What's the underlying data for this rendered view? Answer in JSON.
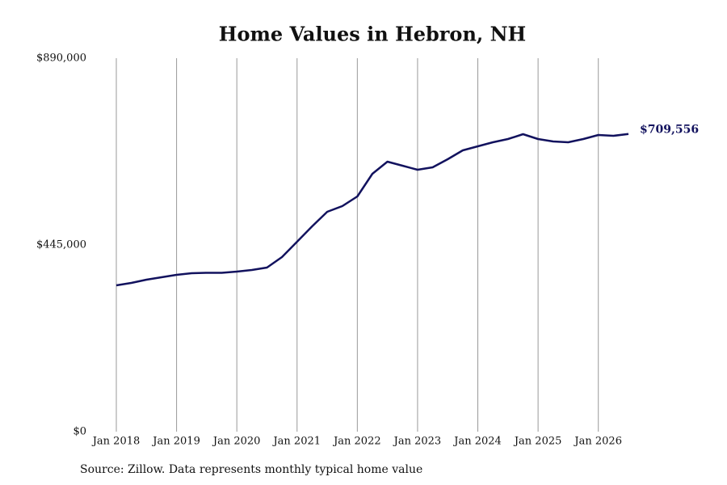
{
  "chart_data": {
    "type": "line",
    "title": "Home Values in Hebron, NH",
    "source": "Source: Zillow. Data represents monthly typical home value",
    "x": [
      "2018-01",
      "2018-04",
      "2018-07",
      "2018-10",
      "2019-01",
      "2019-04",
      "2019-07",
      "2019-10",
      "2020-01",
      "2020-04",
      "2020-07",
      "2020-10",
      "2021-01",
      "2021-04",
      "2021-07",
      "2021-10",
      "2022-01",
      "2022-04",
      "2022-07",
      "2022-10",
      "2023-01",
      "2023-04",
      "2023-07",
      "2023-10",
      "2024-01",
      "2024-04",
      "2024-07",
      "2024-10",
      "2025-01",
      "2025-04",
      "2025-07",
      "2025-10",
      "2026-01",
      "2026-04",
      "2026-07"
    ],
    "series": [
      {
        "color": "#12125e",
        "values": [
          348700,
          354400,
          362200,
          368000,
          373700,
          377600,
          378500,
          378500,
          381400,
          385300,
          391100,
          416100,
          452700,
          489300,
          524000,
          537500,
          560600,
          614500,
          643400,
          633800,
          624200,
          629900,
          649200,
          670400,
          680000,
          689700,
          697400,
          708900,
          697400,
          691600,
          689700,
          697400,
          707000,
          705100,
          709556
        ],
        "last_value_label": "$709,556"
      }
    ],
    "xlim": [
      "2018-01",
      "2026-07"
    ],
    "xticks": [
      {
        "value": "2018-01",
        "label": "Jan 2018"
      },
      {
        "value": "2019-01",
        "label": "Jan 2019"
      },
      {
        "value": "2020-01",
        "label": "Jan 2020"
      },
      {
        "value": "2021-01",
        "label": "Jan 2021"
      },
      {
        "value": "2022-01",
        "label": "Jan 2022"
      },
      {
        "value": "2023-01",
        "label": "Jan 2023"
      },
      {
        "value": "2024-01",
        "label": "Jan 2024"
      },
      {
        "value": "2025-01",
        "label": "Jan 2025"
      },
      {
        "value": "2026-01",
        "label": "Jan 2026"
      }
    ],
    "ylim": [
      0,
      890000
    ],
    "yticks": [
      {
        "value": 0,
        "label": "$0"
      },
      {
        "value": 445000,
        "label": "$445,000"
      },
      {
        "value": 890000,
        "label": "$890,000"
      }
    ],
    "grid": "x"
  }
}
